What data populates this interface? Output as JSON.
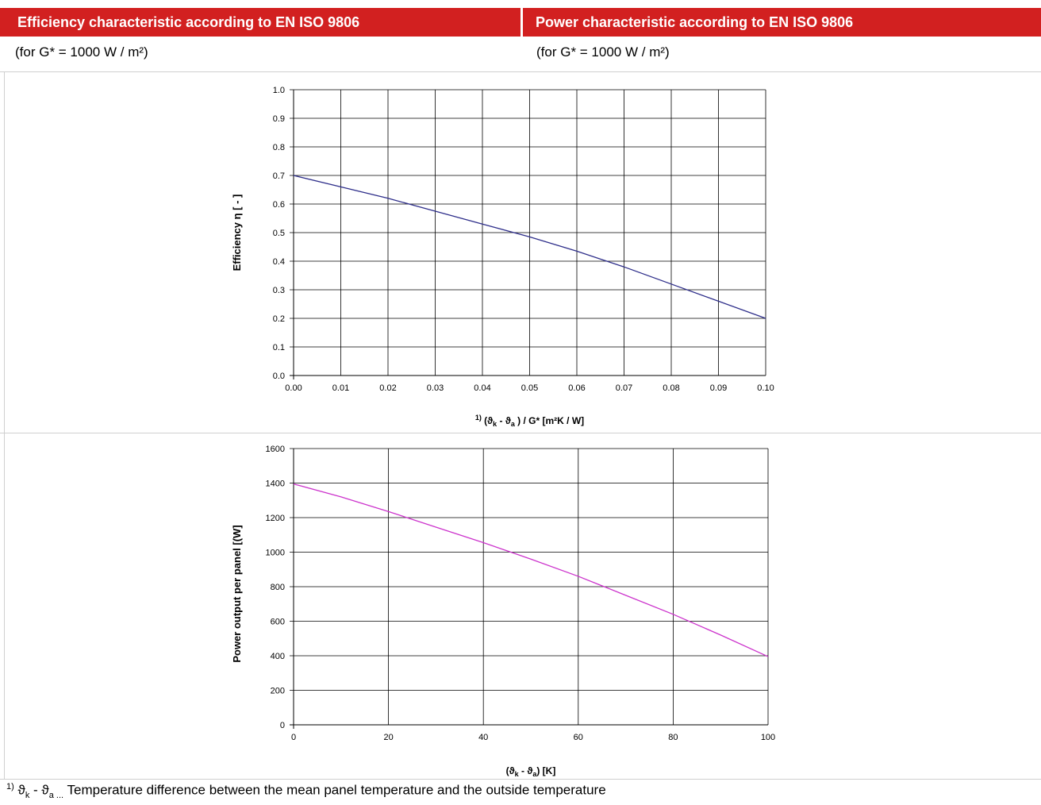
{
  "header": {
    "left_title": "Efficiency characteristic according to EN ISO 9806",
    "right_title": "Power characteristic according to EN ISO 9806"
  },
  "subheader": {
    "left": "(for  G* = 1000 W / m²)",
    "right": "(for G* = 1000 W / m²)"
  },
  "footnote": {
    "marker": "1)",
    "symbol_main": "ϑ",
    "symbol_k": "k",
    "dash": " - ",
    "symbol_a": "a",
    "dots": " ...",
    "text": " Temperature difference between the mean panel temperature and the outside temperature"
  },
  "chart_data": [
    {
      "type": "line",
      "ylabel": "Efficiency η [ - ]",
      "xlabel_parts": {
        "marker": "1)",
        "open": "(ϑ",
        "sub_k": "k",
        "mid": " - ϑ",
        "sub_a": "a",
        "close": " ) / G* [m²K / W]"
      },
      "xlim": [
        0,
        0.1
      ],
      "ylim": [
        0,
        1.0
      ],
      "x_ticks": [
        "0.00",
        "0.01",
        "0.02",
        "0.03",
        "0.04",
        "0.05",
        "0.06",
        "0.07",
        "0.08",
        "0.09",
        "0.10"
      ],
      "y_ticks": [
        "0.0",
        "0.1",
        "0.2",
        "0.3",
        "0.4",
        "0.5",
        "0.6",
        "0.7",
        "0.8",
        "0.9",
        "1.0"
      ],
      "grid": true,
      "color": "#2e2e8a",
      "series": [
        {
          "x": [
            0.0,
            0.01,
            0.02,
            0.03,
            0.04,
            0.05,
            0.06,
            0.07,
            0.08,
            0.09,
            0.1
          ],
          "y": [
            0.7,
            0.66,
            0.62,
            0.575,
            0.53,
            0.485,
            0.435,
            0.38,
            0.32,
            0.26,
            0.2
          ]
        }
      ]
    },
    {
      "type": "line",
      "ylabel": "Power output per panel [(W]",
      "xlabel_parts": {
        "open": "(ϑ",
        "sub_k": "k",
        "mid": " - ϑ",
        "sub_a": "a",
        "close": ") [K]"
      },
      "xlim": [
        0,
        100
      ],
      "ylim": [
        0,
        1600
      ],
      "x_ticks": [
        "0",
        "20",
        "40",
        "60",
        "80",
        "100"
      ],
      "y_ticks": [
        "0",
        "200",
        "400",
        "600",
        "800",
        "1000",
        "1200",
        "1400",
        "1600"
      ],
      "grid": true,
      "color": "#cc33cc",
      "series": [
        {
          "x": [
            0,
            10,
            20,
            30,
            40,
            50,
            60,
            70,
            80,
            90,
            100
          ],
          "y": [
            1395,
            1320,
            1235,
            1145,
            1055,
            960,
            860,
            750,
            640,
            520,
            395
          ]
        }
      ]
    }
  ]
}
